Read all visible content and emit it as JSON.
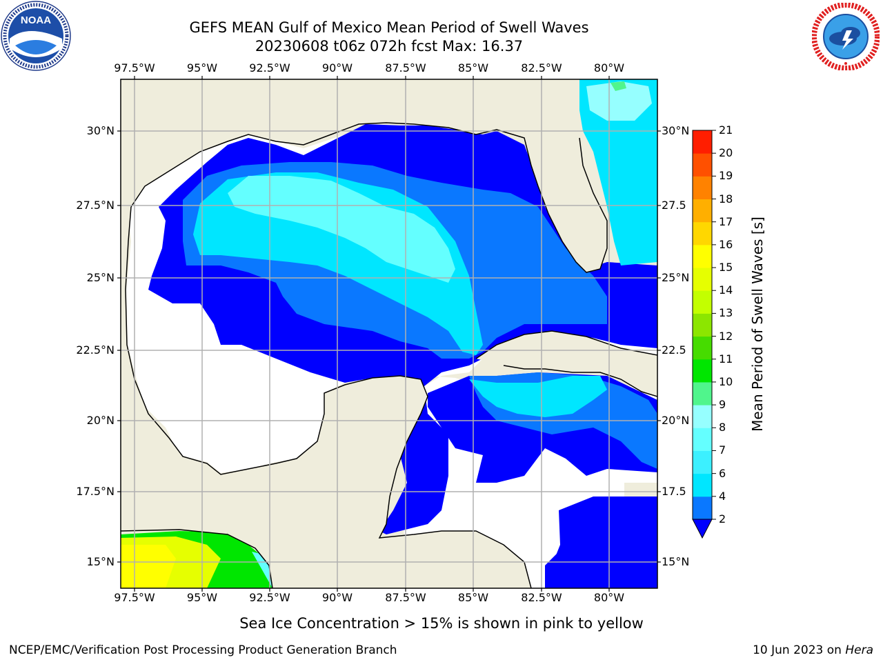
{
  "title": {
    "line1": "GEFS MEAN Gulf of Mexico Mean Period of Swell Waves",
    "line2": "20230608 t06z 072h fcst   Max: 16.37"
  },
  "logos": {
    "left": {
      "text": "NOAA",
      "ring_text": "NATIONAL OCEANIC AND ATMOSPHERIC ADMINISTRATION · U.S. DEPARTMENT OF COMMERCE"
    },
    "right": {
      "ring_text": "NATIONAL WEATHER SERVICE"
    }
  },
  "axes": {
    "lon_ticks": [
      "97.5°W",
      "95°W",
      "92.5°W",
      "90°W",
      "87.5°W",
      "85°W",
      "82.5°W",
      "80°W"
    ],
    "lat_ticks_left": [
      "30°N",
      "27.5°N",
      "25°N",
      "22.5°N",
      "20°N",
      "17.5°N",
      "15°N"
    ],
    "lat_ticks_right": [
      "30°N",
      "27.5",
      "25°N",
      "22.5",
      "20°N",
      "17.5",
      "15°N"
    ],
    "lon_range": [
      -98,
      -78
    ],
    "lat_range": [
      14,
      31.8
    ],
    "grid": true
  },
  "colorbar": {
    "label": "Mean Period of Swell Waves [s]",
    "ticks": [
      "2",
      "4",
      "6",
      "7",
      "8",
      "9",
      "10",
      "11",
      "12",
      "13",
      "14",
      "15",
      "16",
      "17",
      "18",
      "19",
      "20",
      "21"
    ],
    "colors": [
      "#0a78ff",
      "#00e6ff",
      "#3cf0ff",
      "#64ffff",
      "#96ffff",
      "#50f58c",
      "#00e600",
      "#46dc00",
      "#8ce600",
      "#c3ff00",
      "#e6ff00",
      "#ffff00",
      "#ffd700",
      "#ffaf00",
      "#ff8200",
      "#ff5000",
      "#ff1e00"
    ],
    "extend_color": "#0000ff",
    "extend": "min"
  },
  "field_colors": {
    "land": "#efeddc",
    "ocean_under2": "#0000ff",
    "p2_4": "#0a78ff",
    "p4_6": "#00e6ff",
    "p6_7": "#3cf0ff",
    "p7_8": "#64ffff",
    "p8_9": "#96ffff",
    "p9_10": "#50f58c",
    "p10_11": "#00e600",
    "p11_12": "#46dc00",
    "p13_14": "#e6ff00",
    "p14_15": "#ffff00",
    "no_swell": "#ffffff",
    "grid": "#b0b0b0"
  },
  "notes": {
    "ice": "Sea Ice Concentration > 15% is shown in pink to yellow"
  },
  "footer": {
    "left": "NCEP/EMC/Verification Post Processing Product Generation Branch",
    "date": "10 Jun 2023 on ",
    "machine": "Hera"
  }
}
